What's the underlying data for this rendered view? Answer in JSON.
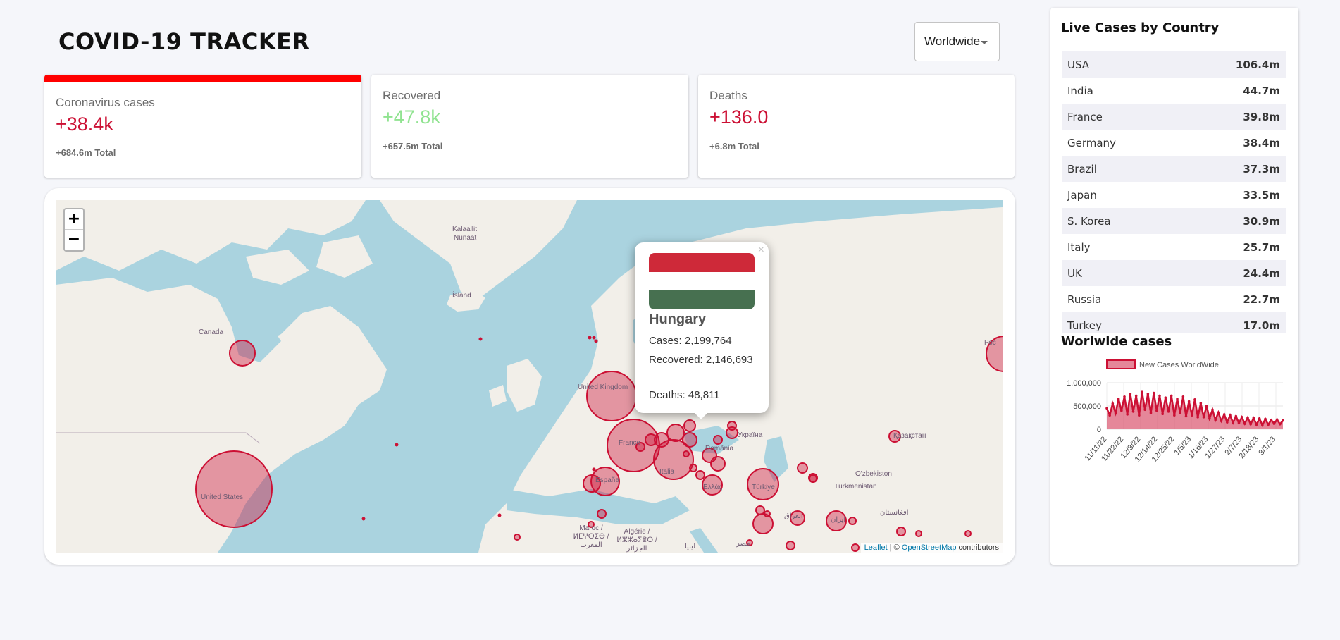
{
  "app": {
    "title": "COVID-19 TRACKER"
  },
  "country_select": {
    "selected": "Worldwide"
  },
  "stats": {
    "cases": {
      "title": "Coronavirus cases",
      "value": "+38.4k",
      "total": "+684.6m Total",
      "color": "#cc1034"
    },
    "recovered": {
      "title": "Recovered",
      "value": "+47.8k",
      "total": "+657.5m Total",
      "color": "#7dd71d"
    },
    "deaths": {
      "title": "Deaths",
      "value": "+136.0",
      "total": "+6.8m Total",
      "color": "#cc1034"
    }
  },
  "map": {
    "zoom_in": "+",
    "zoom_out": "−",
    "labels": [
      {
        "text": "Kalaallit"
      },
      {
        "text": "Nunaat"
      },
      {
        "text": "Ísland"
      },
      {
        "text": "Canada"
      },
      {
        "text": "United Kingdom"
      },
      {
        "text": "France"
      },
      {
        "text": "España"
      },
      {
        "text": "Italia"
      },
      {
        "text": "Ελλάς"
      },
      {
        "text": "România"
      },
      {
        "text": "Україна"
      },
      {
        "text": "Türkiye"
      },
      {
        "text": "Қазақстан"
      },
      {
        "text": "O'zbekiston"
      },
      {
        "text": "Türkmenistan"
      },
      {
        "text": "افغانستان"
      },
      {
        "text": "Maroc / ⵍⵎⵖⵔⵉⴱ / المغرب"
      },
      {
        "text": "Algérie / ⵍⵣⵣⴰⵢⴻⵔ / الجزائر"
      },
      {
        "text": "ليبيا"
      },
      {
        "text": "مصر"
      },
      {
        "text": "United States"
      },
      {
        "text": "العراق"
      },
      {
        "text": "ایران"
      },
      {
        "text": "Рос"
      }
    ],
    "attribution": {
      "leaflet": "Leaflet",
      "sep": " | © ",
      "osm": "OpenStreetMap",
      "tail": " contributors"
    }
  },
  "popup": {
    "close": "×",
    "country": "Hungary",
    "cases": "Cases: 2,199,764",
    "recovered": "Recovered: 2,146,693",
    "deaths": "Deaths: 48,811",
    "flag_colors": [
      "#ce2939",
      "#ffffff",
      "#477050"
    ]
  },
  "sidebar": {
    "table_title": "Live Cases by Country",
    "countries": [
      {
        "name": "USA",
        "cases": "106.4m"
      },
      {
        "name": "India",
        "cases": "44.7m"
      },
      {
        "name": "France",
        "cases": "39.8m"
      },
      {
        "name": "Germany",
        "cases": "38.4m"
      },
      {
        "name": "Brazil",
        "cases": "37.3m"
      },
      {
        "name": "Japan",
        "cases": "33.5m"
      },
      {
        "name": "S. Korea",
        "cases": "30.9m"
      },
      {
        "name": "Italy",
        "cases": "25.7m"
      },
      {
        "name": "UK",
        "cases": "24.4m"
      },
      {
        "name": "Russia",
        "cases": "22.7m"
      },
      {
        "name": "Turkey",
        "cases": "17.0m"
      }
    ],
    "chart_title": "Worlwide cases"
  },
  "chart_data": {
    "type": "line",
    "title": "Worlwide cases",
    "legend": "New Cases WorldWide",
    "ylim": [
      0,
      1000000
    ],
    "y_ticks": [
      "0",
      "500,000",
      "1,000,000"
    ],
    "x_ticks": [
      "11/11/22",
      "11/22/22",
      "12/3/22",
      "12/14/22",
      "12/25/22",
      "1/5/23",
      "1/16/23",
      "1/27/23",
      "2/7/23",
      "2/18/23",
      "3/1/23"
    ],
    "series": [
      {
        "name": "New Cases WorldWide",
        "color": "#cc1034",
        "values": [
          450000,
          300000,
          550000,
          350000,
          650000,
          400000,
          700000,
          320000,
          760000,
          380000,
          720000,
          300000,
          800000,
          420000,
          760000,
          350000,
          780000,
          400000,
          720000,
          330000,
          680000,
          380000,
          720000,
          300000,
          650000,
          350000,
          700000,
          280000,
          600000,
          300000,
          640000,
          260000,
          560000,
          260000,
          500000,
          230000,
          420000,
          200000,
          360000,
          180000,
          320000,
          150000,
          300000,
          140000,
          280000,
          130000,
          260000,
          120000,
          250000,
          110000,
          240000,
          100000,
          230000,
          90000,
          220000,
          100000,
          200000,
          120000,
          210000,
          110000,
          190000
        ]
      }
    ]
  }
}
